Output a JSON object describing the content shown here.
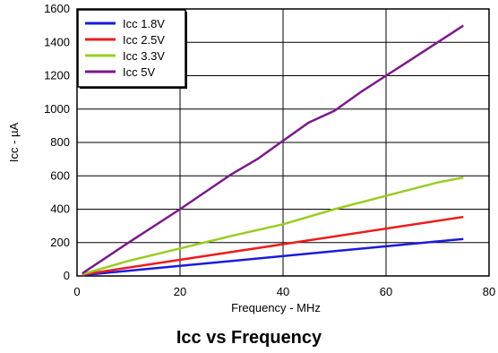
{
  "chart_data": {
    "type": "line",
    "title": "Icc vs Frequency",
    "xlabel": "Frequency - MHz",
    "ylabel": "Icc - µA",
    "xlim": [
      0,
      80
    ],
    "ylim": [
      0,
      1600
    ],
    "xticks": [
      0,
      20,
      40,
      60,
      80
    ],
    "yticks": [
      0,
      200,
      400,
      600,
      800,
      1000,
      1200,
      1400,
      1600
    ],
    "grid": true,
    "legend_position": "top-left",
    "series": [
      {
        "name": "Icc 1.8V",
        "color": "#1a1adc",
        "x": [
          1,
          75
        ],
        "y": [
          5,
          222
        ]
      },
      {
        "name": "Icc 2.5V",
        "color": "#ee1c1c",
        "x": [
          1,
          75
        ],
        "y": [
          8,
          354
        ]
      },
      {
        "name": "Icc 3.3V",
        "color": "#99cc22",
        "x": [
          1,
          10,
          20,
          30,
          40,
          50,
          60,
          70,
          75
        ],
        "y": [
          10,
          90,
          165,
          240,
          310,
          400,
          480,
          560,
          590
        ]
      },
      {
        "name": "Icc 5V",
        "color": "#7a1a8a",
        "x": [
          1,
          10,
          20,
          30,
          35,
          40,
          45,
          50,
          55,
          60,
          65,
          70,
          75
        ],
        "y": [
          15,
          200,
          400,
          610,
          700,
          810,
          920,
          990,
          1100,
          1200,
          1300,
          1400,
          1500
        ]
      }
    ]
  }
}
